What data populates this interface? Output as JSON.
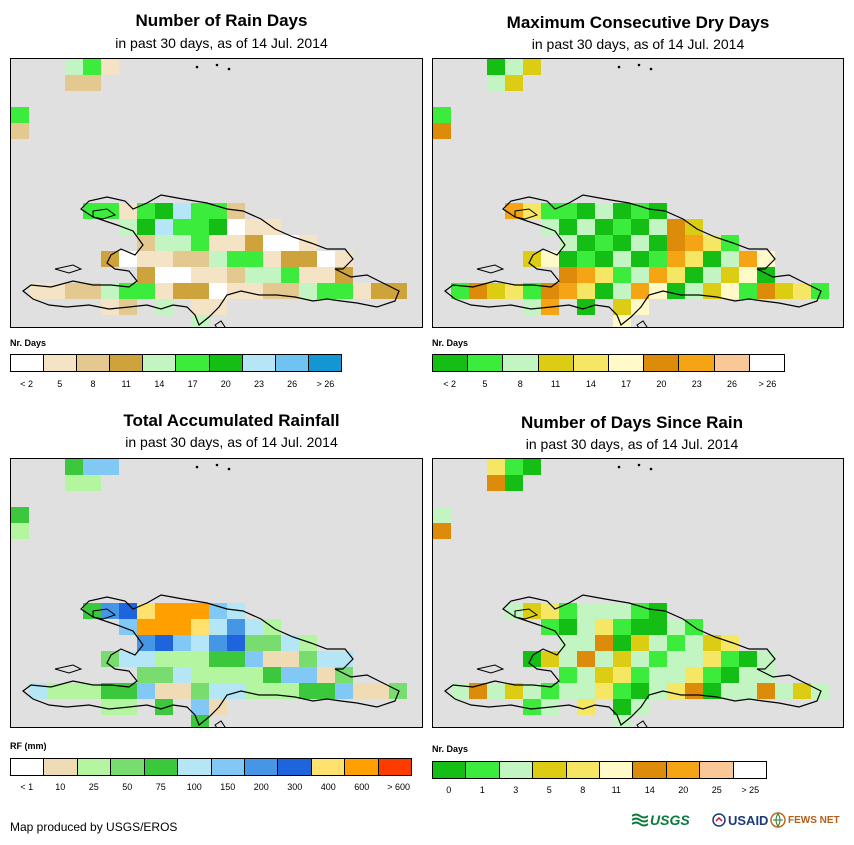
{
  "panels": [
    {
      "id": "rain-days",
      "title": "Number of Rain Days",
      "subtitle": "in past 30 days, as of 14 Jul. 2014",
      "legend_title": "Nr. Days",
      "legend_colors": [
        "#ffffff",
        "#f5e3c5",
        "#e3c890",
        "#cfa33c",
        "#c3f5c3",
        "#3cec3c",
        "#14be14",
        "#b4e6f5",
        "#6ec3f0",
        "#1496d2"
      ],
      "legend_labels": [
        "< 2",
        "5",
        "8",
        "11",
        "14",
        "17",
        "20",
        "23",
        "26",
        "> 26"
      ]
    },
    {
      "id": "max-dry-days",
      "title": "Maximum Consecutive Dry Days",
      "subtitle": "in past 30 days, as of 14 Jul. 2014",
      "legend_title": "Nr. Days",
      "legend_colors": [
        "#14be14",
        "#3cec3c",
        "#c3f5c3",
        "#dccd14",
        "#f5e664",
        "#fffac8",
        "#dc8c0a",
        "#f5a514",
        "#fac896",
        "#ffffff"
      ],
      "legend_labels": [
        "< 2",
        "5",
        "8",
        "11",
        "14",
        "17",
        "20",
        "23",
        "26",
        "> 26"
      ]
    },
    {
      "id": "total-rainfall",
      "title": "Total Accumulated Rainfall",
      "subtitle": "in past 30 days, as of 14 Jul. 2014",
      "legend_title": "RF (mm)",
      "legend_colors": [
        "#ffffff",
        "#f0dcb4",
        "#b4f5a0",
        "#78dc6e",
        "#3cc83c",
        "#b4e6f5",
        "#82c8f5",
        "#4696e6",
        "#1e64dc",
        "#ffe16e",
        "#ffa000",
        "#ff3c00"
      ],
      "legend_labels": [
        "< 1",
        "10",
        "25",
        "50",
        "75",
        "100",
        "150",
        "200",
        "300",
        "400",
        "600",
        "> 600"
      ]
    },
    {
      "id": "days-since-rain",
      "title": "Number of Days Since Rain",
      "subtitle": "in past 30 days, as of 14 Jul. 2014",
      "legend_title": "Nr. Days",
      "legend_colors": [
        "#14be14",
        "#3cec3c",
        "#c3f5c3",
        "#dccd14",
        "#f5e664",
        "#fffac8",
        "#dc8c0a",
        "#f5a514",
        "#fac896",
        "#ffffff"
      ],
      "legend_labels": [
        "0",
        "1",
        "3",
        "5",
        "8",
        "11",
        "14",
        "20",
        "25",
        "> 25"
      ]
    }
  ],
  "footer": {
    "credit": "Map produced by USGS/EROS",
    "logos": [
      "USGS",
      "USAID",
      "FEWS NET"
    ]
  },
  "map_colors": {
    "background": "#e0e0e0",
    "outline": "#000000"
  }
}
